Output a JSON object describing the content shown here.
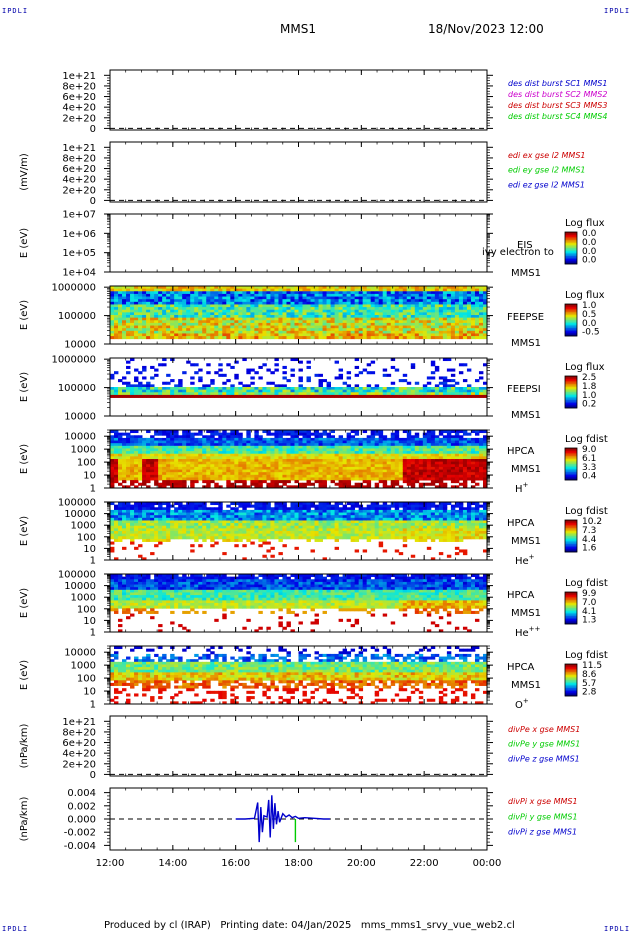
{
  "header": {
    "corner_left_top": "IPDLI",
    "corner_right_top": "IPDLI",
    "corner_left_bottom": "IPDLI",
    "corner_right_bottom": "IPDLI",
    "spacecraft": "MMS1",
    "datetime": "18/Nov/2023 12:00"
  },
  "footer": {
    "text": "Produced by cl (IRAP)   Printing date: 04/Jan/2025   mms_mms1_srvy_vue_web2.cl"
  },
  "colors": {
    "blue": "#0000cc",
    "magenta": "#cc00cc",
    "red": "#cc0000",
    "green": "#00cc00"
  },
  "chart_data": [
    {
      "id": "p1",
      "type": "line",
      "top": 70,
      "bottom": 130,
      "ylabel": "",
      "ylim": [
        -3e+19,
        1.1e+21
      ],
      "yticks": [
        {
          "v": 1e+21,
          "label": "1e+21"
        },
        {
          "v": 8e+20,
          "label": "8e+20"
        },
        {
          "v": 6e+20,
          "label": "6e+20"
        },
        {
          "v": 4e+20,
          "label": "4e+20"
        },
        {
          "v": 2e+20,
          "label": "2e+20"
        },
        {
          "v": 0,
          "label": "0"
        }
      ],
      "zero_line": true,
      "legend": [
        {
          "text": "des dist burst SC1 MMS1",
          "color": "#0000cc"
        },
        {
          "text": "des dist burst SC2 MMS2",
          "color": "#cc00cc"
        },
        {
          "text": "des dist burst SC3 MMS3",
          "color": "#cc0000"
        },
        {
          "text": "des dist burst SC4 MMS4",
          "color": "#00cc00"
        }
      ]
    },
    {
      "id": "p2",
      "type": "line",
      "top": 142,
      "bottom": 202,
      "ylabel": "(mV/m)",
      "ylim": [
        -3e+19,
        1.1e+21
      ],
      "yticks": [
        {
          "v": 1e+21,
          "label": "1e+21"
        },
        {
          "v": 8e+20,
          "label": "8e+20"
        },
        {
          "v": 6e+20,
          "label": "6e+20"
        },
        {
          "v": 4e+20,
          "label": "4e+20"
        },
        {
          "v": 2e+20,
          "label": "2e+20"
        },
        {
          "v": 0,
          "label": "0"
        }
      ],
      "zero_line": true,
      "legend": [
        {
          "text": "edi ex gse l2 MMS1",
          "color": "#cc0000"
        },
        {
          "text": "edi ey gse l2 MMS1",
          "color": "#00cc00"
        },
        {
          "text": "edi ez gse l2 MMS1",
          "color": "#0000cc"
        }
      ]
    },
    {
      "id": "p3",
      "type": "heatmap",
      "top": 214,
      "bottom": 272,
      "ylabel": "E (eV)",
      "log": true,
      "ylim": [
        10000.0,
        10000000.0
      ],
      "yticks": [
        {
          "v": 10000000.0,
          "label": "1e+07"
        },
        {
          "v": 1000000.0,
          "label": "1e+06"
        },
        {
          "v": 100000.0,
          "label": "1e+05"
        },
        {
          "v": 10000.0,
          "label": "1e+04"
        }
      ],
      "labels": [
        "EIS",
        "MMS1"
      ],
      "overlay": "ivy electron to",
      "cbar_title": "Log flux",
      "cbar_ticks": [
        "0.0",
        "0.0",
        "0.0",
        "0.0"
      ],
      "pattern": "empty"
    },
    {
      "id": "p4",
      "type": "heatmap",
      "top": 286,
      "bottom": 344,
      "ylabel": "E (eV)",
      "log": true,
      "ylim": [
        10000.0,
        1100000.0
      ],
      "yticks": [
        {
          "v": 1000000.0,
          "label": "1000000"
        },
        {
          "v": 100000.0,
          "label": "100000"
        },
        {
          "v": 10000.0,
          "label": "10000"
        }
      ],
      "labels": [
        "FEEPSE",
        "MMS1"
      ],
      "cbar_title": "Log flux",
      "cbar_ticks": [
        "1.0",
        "0.5",
        "0.0",
        "-0.5"
      ],
      "pattern": "feepse"
    },
    {
      "id": "p5",
      "type": "heatmap",
      "top": 358,
      "bottom": 416,
      "ylabel": "E (eV)",
      "log": true,
      "ylim": [
        10000.0,
        1100000.0
      ],
      "yticks": [
        {
          "v": 1000000.0,
          "label": "1000000"
        },
        {
          "v": 100000.0,
          "label": "100000"
        },
        {
          "v": 10000.0,
          "label": "10000"
        }
      ],
      "labels": [
        "FEEPSI",
        "MMS1"
      ],
      "cbar_title": "Log flux",
      "cbar_ticks": [
        "2.5",
        "1.8",
        "1.0",
        "0.2"
      ],
      "pattern": "feepsi"
    },
    {
      "id": "p6",
      "type": "heatmap",
      "top": 430,
      "bottom": 488,
      "ylabel": "E (eV)",
      "log": true,
      "ylim": [
        1,
        30000.0
      ],
      "yticks": [
        {
          "v": 10000.0,
          "label": "10000"
        },
        {
          "v": 1000.0,
          "label": "1000"
        },
        {
          "v": 100.0,
          "label": "100"
        },
        {
          "v": 10,
          "label": "10"
        },
        {
          "v": 1,
          "label": "1"
        }
      ],
      "labels": [
        "HPCA",
        "MMS1"
      ],
      "species": "H",
      "species_sup": "+",
      "cbar_title": "Log fdist",
      "cbar_ticks": [
        "9.0",
        "6.1",
        "3.3",
        "0.4"
      ],
      "pattern": "hplus"
    },
    {
      "id": "p7",
      "type": "heatmap",
      "top": 502,
      "bottom": 560,
      "ylabel": "E (eV)",
      "log": true,
      "ylim": [
        1,
        100000.0
      ],
      "yticks": [
        {
          "v": 100000.0,
          "label": "100000"
        },
        {
          "v": 10000.0,
          "label": "10000"
        },
        {
          "v": 1000.0,
          "label": "1000"
        },
        {
          "v": 100.0,
          "label": "100"
        },
        {
          "v": 10,
          "label": "10"
        },
        {
          "v": 1,
          "label": "1"
        }
      ],
      "labels": [
        "HPCA",
        "MMS1"
      ],
      "species": "He",
      "species_sup": "+",
      "cbar_title": "Log fdist",
      "cbar_ticks": [
        "10.2",
        "7.3",
        "4.4",
        "1.6"
      ],
      "pattern": "heplus"
    },
    {
      "id": "p8",
      "type": "heatmap",
      "top": 574,
      "bottom": 632,
      "ylabel": "E (eV)",
      "log": true,
      "ylim": [
        1,
        100000.0
      ],
      "yticks": [
        {
          "v": 100000.0,
          "label": "100000"
        },
        {
          "v": 10000.0,
          "label": "10000"
        },
        {
          "v": 1000.0,
          "label": "1000"
        },
        {
          "v": 100.0,
          "label": "100"
        },
        {
          "v": 10,
          "label": "10"
        },
        {
          "v": 1,
          "label": "1"
        }
      ],
      "labels": [
        "HPCA",
        "MMS1"
      ],
      "species": "He",
      "species_sup": "++",
      "cbar_title": "Log fdist",
      "cbar_ticks": [
        "9.9",
        "7.0",
        "4.1",
        "1.3"
      ],
      "pattern": "hepp"
    },
    {
      "id": "p9",
      "type": "heatmap",
      "top": 646,
      "bottom": 704,
      "ylabel": "E (eV)",
      "log": true,
      "ylim": [
        1,
        30000.0
      ],
      "yticks": [
        {
          "v": 10000.0,
          "label": "10000"
        },
        {
          "v": 1000.0,
          "label": "1000"
        },
        {
          "v": 100.0,
          "label": "100"
        },
        {
          "v": 10,
          "label": "10"
        },
        {
          "v": 1,
          "label": "1"
        }
      ],
      "labels": [
        "HPCA",
        "MMS1"
      ],
      "species": "O",
      "species_sup": "+",
      "cbar_title": "Log fdist",
      "cbar_ticks": [
        "11.5",
        "8.6",
        "5.7",
        "2.8"
      ],
      "pattern": "oplus"
    },
    {
      "id": "p10",
      "type": "line",
      "top": 716,
      "bottom": 776,
      "ylabel": "(nPa/km)",
      "ylim": [
        -3e+19,
        1.1e+21
      ],
      "yticks": [
        {
          "v": 1e+21,
          "label": "1e+21"
        },
        {
          "v": 8e+20,
          "label": "8e+20"
        },
        {
          "v": 6e+20,
          "label": "6e+20"
        },
        {
          "v": 4e+20,
          "label": "4e+20"
        },
        {
          "v": 2e+20,
          "label": "2e+20"
        },
        {
          "v": 0,
          "label": "0"
        }
      ],
      "zero_line": true,
      "legend": [
        {
          "text": "divPe x gse MMS1",
          "color": "#cc0000"
        },
        {
          "text": "divPe y gse MMS1",
          "color": "#00cc00"
        },
        {
          "text": "divPe z gse MMS1",
          "color": "#0000cc"
        }
      ]
    },
    {
      "id": "p11",
      "type": "line",
      "top": 788,
      "bottom": 850,
      "ylabel": "(nPa/km)",
      "ylim": [
        -0.0047,
        0.0047
      ],
      "yticks": [
        {
          "v": 0.004,
          "label": "0.004"
        },
        {
          "v": 0.002,
          "label": "0.002"
        },
        {
          "v": 0,
          "label": "0.000"
        },
        {
          "v": -0.002,
          "label": "-0.002"
        },
        {
          "v": -0.004,
          "label": "-0.004"
        }
      ],
      "zero_line": true,
      "legend": [
        {
          "text": "divPi x gse MMS1",
          "color": "#cc0000"
        },
        {
          "text": "divPi y gse MMS1",
          "color": "#00cc00"
        },
        {
          "text": "divPi z gse MMS1",
          "color": "#0000cc"
        }
      ],
      "series": [
        {
          "name": "divPi z gse MMS1",
          "color": "#0000cc",
          "x": [
            16.0,
            16.3,
            16.6,
            16.7,
            16.75,
            16.8,
            16.85,
            16.9,
            17.0,
            17.05,
            17.1,
            17.15,
            17.2,
            17.25,
            17.3,
            17.35,
            17.4,
            17.5,
            17.6,
            17.7,
            17.8,
            17.9,
            18.0,
            18.2,
            18.5,
            18.8,
            19.0
          ],
          "y": [
            0,
            0,
            0.0001,
            0.0025,
            -0.0035,
            0.0018,
            -0.002,
            0.0005,
            0.0003,
            0.0029,
            -0.0028,
            0.0036,
            -0.0015,
            0.0024,
            -0.0008,
            0.0012,
            -0.0005,
            0.0008,
            0.0003,
            0.0006,
            0.0002,
            0.0004,
            0.0001,
            0.0002,
            0.0001,
            0,
            0
          ]
        },
        {
          "name": "divPi y gse MMS1",
          "color": "#00cc00",
          "x": [
            17.9,
            17.9,
            17.9
          ],
          "y": [
            0,
            -0.0035,
            0
          ]
        }
      ]
    }
  ],
  "xaxis": {
    "range": [
      12,
      24
    ],
    "ticks": [
      {
        "v": 12,
        "label": "12:00"
      },
      {
        "v": 14,
        "label": "14:00"
      },
      {
        "v": 16,
        "label": "16:00"
      },
      {
        "v": 18,
        "label": "18:00"
      },
      {
        "v": 20,
        "label": "20:00"
      },
      {
        "v": 22,
        "label": "22:00"
      },
      {
        "v": 24,
        "label": "00:00"
      }
    ]
  }
}
